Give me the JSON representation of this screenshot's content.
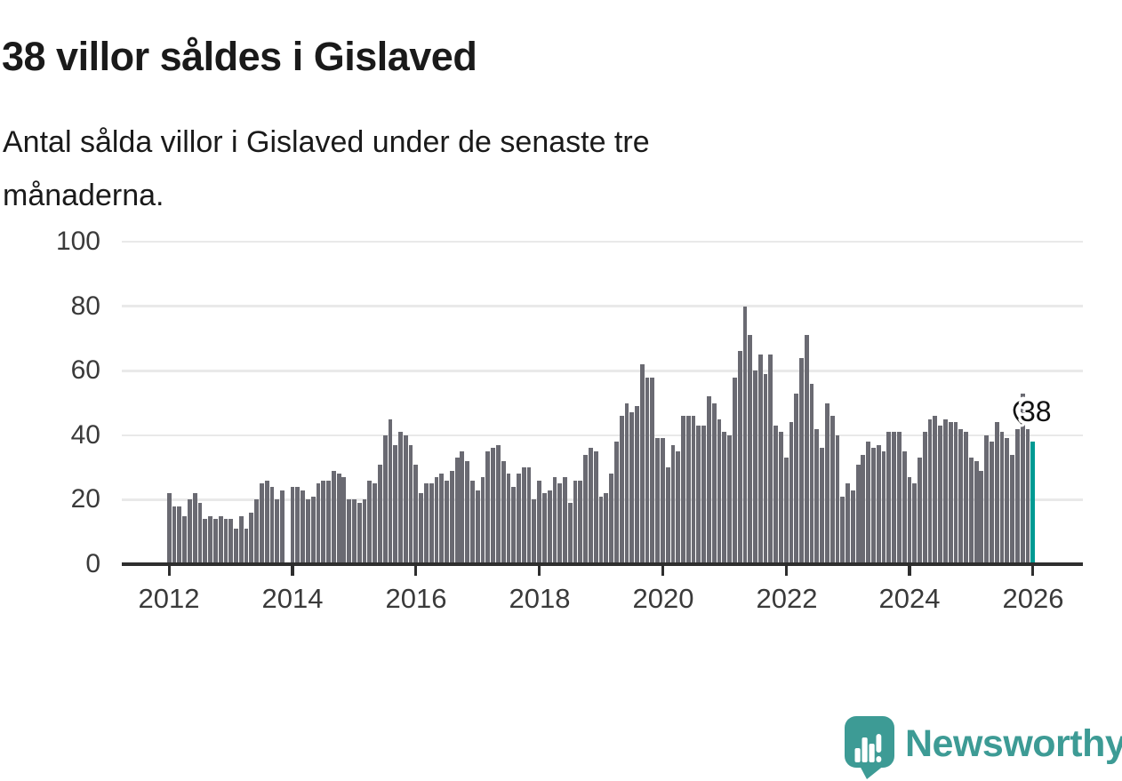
{
  "title": "38 villor såldes i Gislaved",
  "subtitle": "Antal sålda villor i Gislaved under de senaste tre månaderna.",
  "subtitle_lines": [
    "Antal sålda villor i Gislaved under de senaste tre",
    "månaderna."
  ],
  "annotation": {
    "label": "38",
    "value": 38
  },
  "watermark": {
    "brand": "Newsworthy",
    "icon": "newsworthy-speech-bubble-bar-chart-logo"
  },
  "colors": {
    "bar": "#6a6a72",
    "highlight_bar": "#009a93",
    "logo_teal": "#3d9b95",
    "text": "#1a1a1a",
    "tick_label": "#3a3a3a",
    "axis": "#2e2e2e",
    "gridline": "#e9e9e9",
    "background": "#ffffff"
  },
  "chart_data": {
    "type": "bar",
    "title": "38 villor såldes i Gislaved",
    "subtitle": "Antal sålda villor i Gislaved under de senaste tre månaderna.",
    "unit": "sålda villor (rullande 3 månader)",
    "x_start": "2012-01",
    "x_end": "2026-01",
    "frequency": "monthly",
    "grid": "horizontal",
    "ylim": [
      0,
      100
    ],
    "yticks": [
      0,
      20,
      40,
      60,
      80,
      100
    ],
    "xticks": [
      "2012",
      "2014",
      "2016",
      "2018",
      "2020",
      "2022",
      "2024",
      "2026"
    ],
    "highlight_index": 168,
    "highlight_value": 38,
    "values": [
      22,
      18,
      18,
      15,
      20,
      22,
      19,
      14,
      15,
      14,
      15,
      14,
      14,
      11,
      15,
      11,
      16,
      20,
      25,
      26,
      24,
      20,
      23,
      null,
      24,
      24,
      23,
      20,
      21,
      25,
      26,
      26,
      29,
      28,
      27,
      20,
      20,
      19,
      20,
      26,
      25,
      31,
      40,
      45,
      37,
      41,
      40,
      37,
      31,
      22,
      25,
      25,
      27,
      28,
      26,
      29,
      33,
      35,
      32,
      26,
      23,
      27,
      35,
      36,
      37,
      32,
      28,
      24,
      28,
      30,
      30,
      20,
      26,
      22,
      23,
      27,
      25,
      27,
      19,
      26,
      26,
      34,
      36,
      35,
      21,
      22,
      28,
      38,
      46,
      50,
      47,
      49,
      62,
      58,
      58,
      39,
      39,
      30,
      37,
      35,
      46,
      46,
      46,
      43,
      43,
      52,
      50,
      45,
      41,
      40,
      58,
      66,
      80,
      71,
      60,
      65,
      59,
      65,
      43,
      41,
      33,
      44,
      53,
      64,
      71,
      56,
      42,
      36,
      50,
      46,
      40,
      21,
      25,
      23,
      31,
      34,
      38,
      36,
      37,
      35,
      41,
      41,
      41,
      35,
      27,
      25,
      33,
      41,
      45,
      46,
      43,
      45,
      44,
      44,
      42,
      41,
      33,
      32,
      29,
      40,
      38,
      44,
      41,
      39,
      34,
      42,
      53,
      42,
      38
    ]
  }
}
